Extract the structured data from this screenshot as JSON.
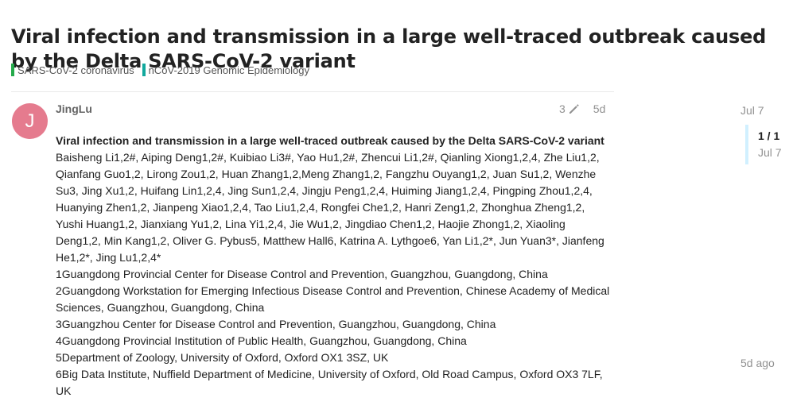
{
  "topic": {
    "title": "Viral infection and transmission in a large well-traced outbreak caused by the Delta SARS-CoV-2 variant",
    "categories": [
      {
        "label": "SARS-CoV-2 coronavirus",
        "color": "#25aa4b"
      },
      {
        "label": "nCoV-2019 Genomic Epidemiology",
        "color": "#12a89d"
      }
    ]
  },
  "post": {
    "avatar_letter": "J",
    "avatar_color": "#e57b8e",
    "username": "JingLu",
    "edit_count": "3",
    "age": "5d",
    "heading": "Viral infection and transmission in a large well-traced outbreak caused by the Delta SARS-CoV-2 variant",
    "authors": "Baisheng Li1,2#, Aiping Deng1,2#, Kuibiao Li3#, Yao Hu1,2#, Zhencui Li1,2#, Qianling Xiong1,2,4, Zhe Liu1,2, Qianfang Guo1,2, Lirong Zou1,2, Huan Zhang1,2,Meng Zhang1,2, Fangzhu Ouyang1,2, Juan Su1,2, Wenzhe Su3, Jing Xu1,2, Huifang Lin1,2,4, Jing Sun1,2,4, Jingju Peng1,2,4, Huiming Jiang1,2,4, Pingping Zhou1,2,4, Huanying Zhen1,2, Jianpeng Xiao1,2,4, Tao Liu1,2,4, Rongfei Che1,2, Hanri Zeng1,2, Zhonghua Zheng1,2, Yushi Huang1,2, Jianxiang Yu1,2, Lina Yi1,2,4, Jie Wu1,2, Jingdiao Chen1,2, Haojie Zhong1,2, Xiaoling Deng1,2, Min Kang1,2, Oliver G. Pybus5, Matthew Hall6, Katrina A. Lythgoe6, Yan Li1,2*, Jun Yuan3*, Jianfeng He1,2*, Jing Lu1,2,4*",
    "affiliations": [
      "1Guangdong Provincial Center for Disease Control and Prevention, Guangzhou, Guangdong, China",
      "2Guangdong Workstation for Emerging Infectious Disease Control and Prevention, Chinese Academy of Medical Sciences, Guangzhou, Guangdong, China",
      "3Guangzhou Center for Disease Control and Prevention, Guangzhou, Guangdong, China",
      "4Guangdong Provincial Institution of Public Health, Guangzhou, Guangdong, China",
      "5Department of Zoology, University of Oxford, Oxford OX1 3SZ, UK",
      "6Big Data Institute, Nuffield Department of Medicine, University of Oxford, Old Road Campus, Oxford OX3 7LF, UK"
    ]
  },
  "timeline": {
    "start_date": "Jul 7",
    "position": "1 / 1",
    "position_date": "Jul 7",
    "end_label": "5d ago"
  }
}
